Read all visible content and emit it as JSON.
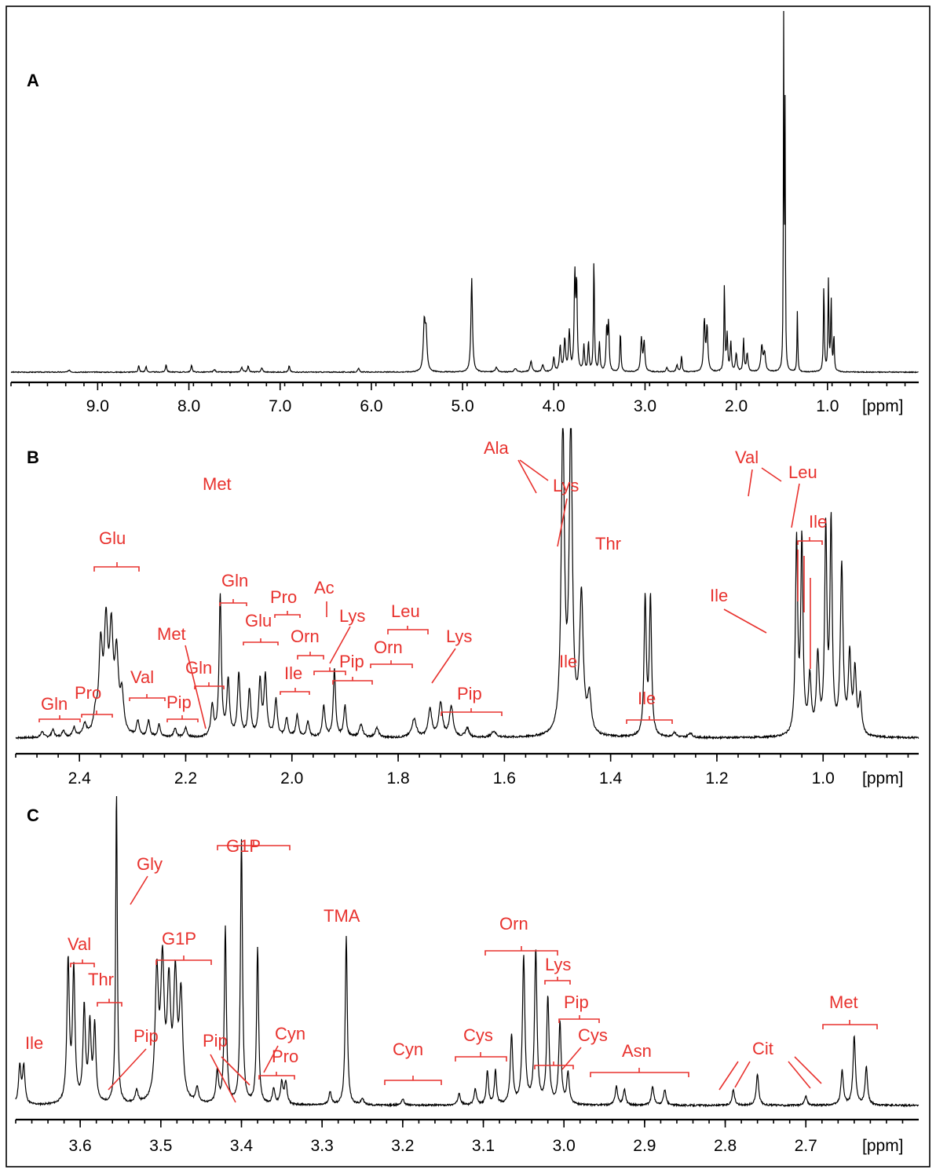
{
  "chart_data": [
    {
      "panel": "A",
      "type": "line",
      "title": "",
      "xlabel": "[ppm]",
      "ylabel": "",
      "xlim": [
        9.95,
        0.0
      ],
      "x_ticks": [
        "9.0",
        "8.0",
        "7.0",
        "6.0",
        "5.0",
        "4.0",
        "3.0",
        "2.0",
        "1.0"
      ],
      "x_tick_values": [
        9.0,
        8.0,
        7.0,
        6.0,
        5.0,
        4.0,
        3.0,
        2.0,
        1.0
      ],
      "peaks": [
        {
          "ppm": 9.31,
          "h": 0.006,
          "w": 0.012
        },
        {
          "ppm": 8.55,
          "h": 0.018,
          "w": 0.008
        },
        {
          "ppm": 8.47,
          "h": 0.016,
          "w": 0.008
        },
        {
          "ppm": 8.25,
          "h": 0.022,
          "w": 0.008
        },
        {
          "ppm": 7.97,
          "h": 0.02,
          "w": 0.008
        },
        {
          "ppm": 7.72,
          "h": 0.007,
          "w": 0.012
        },
        {
          "ppm": 7.42,
          "h": 0.014,
          "w": 0.01
        },
        {
          "ppm": 7.35,
          "h": 0.016,
          "w": 0.01
        },
        {
          "ppm": 7.2,
          "h": 0.012,
          "w": 0.01
        },
        {
          "ppm": 6.9,
          "h": 0.018,
          "w": 0.008
        },
        {
          "ppm": 6.14,
          "h": 0.01,
          "w": 0.01
        },
        {
          "ppm": 5.42,
          "h": 0.13,
          "w": 0.012
        },
        {
          "ppm": 5.4,
          "h": 0.1,
          "w": 0.012
        },
        {
          "ppm": 4.9,
          "h": 0.26,
          "w": 0.01
        },
        {
          "ppm": 4.63,
          "h": 0.012,
          "w": 0.015
        },
        {
          "ppm": 4.42,
          "h": 0.01,
          "w": 0.015
        },
        {
          "ppm": 4.25,
          "h": 0.03,
          "w": 0.012
        },
        {
          "ppm": 4.12,
          "h": 0.02,
          "w": 0.012
        },
        {
          "ppm": 4.0,
          "h": 0.04,
          "w": 0.01
        },
        {
          "ppm": 3.93,
          "h": 0.07,
          "w": 0.01
        },
        {
          "ppm": 3.88,
          "h": 0.09,
          "w": 0.01
        },
        {
          "ppm": 3.83,
          "h": 0.11,
          "w": 0.01
        },
        {
          "ppm": 3.77,
          "h": 0.26,
          "w": 0.008
        },
        {
          "ppm": 3.75,
          "h": 0.24,
          "w": 0.008
        },
        {
          "ppm": 3.67,
          "h": 0.07,
          "w": 0.008
        },
        {
          "ppm": 3.62,
          "h": 0.08,
          "w": 0.008
        },
        {
          "ppm": 3.56,
          "h": 0.32,
          "w": 0.006
        },
        {
          "ppm": 3.5,
          "h": 0.08,
          "w": 0.008
        },
        {
          "ppm": 3.42,
          "h": 0.12,
          "w": 0.008
        },
        {
          "ppm": 3.4,
          "h": 0.13,
          "w": 0.008
        },
        {
          "ppm": 3.27,
          "h": 0.11,
          "w": 0.007
        },
        {
          "ppm": 3.04,
          "h": 0.09,
          "w": 0.01
        },
        {
          "ppm": 3.01,
          "h": 0.08,
          "w": 0.01
        },
        {
          "ppm": 2.76,
          "h": 0.012,
          "w": 0.01
        },
        {
          "ppm": 2.65,
          "h": 0.02,
          "w": 0.01
        },
        {
          "ppm": 2.6,
          "h": 0.045,
          "w": 0.007
        },
        {
          "ppm": 2.35,
          "h": 0.14,
          "w": 0.01
        },
        {
          "ppm": 2.32,
          "h": 0.12,
          "w": 0.01
        },
        {
          "ppm": 2.13,
          "h": 0.24,
          "w": 0.006
        },
        {
          "ppm": 2.1,
          "h": 0.1,
          "w": 0.008
        },
        {
          "ppm": 2.06,
          "h": 0.08,
          "w": 0.008
        },
        {
          "ppm": 2.0,
          "h": 0.05,
          "w": 0.01
        },
        {
          "ppm": 1.92,
          "h": 0.09,
          "w": 0.007
        },
        {
          "ppm": 1.88,
          "h": 0.05,
          "w": 0.01
        },
        {
          "ppm": 1.72,
          "h": 0.07,
          "w": 0.012
        },
        {
          "ppm": 1.69,
          "h": 0.05,
          "w": 0.012
        },
        {
          "ppm": 1.48,
          "h": 1.0,
          "w": 0.004
        },
        {
          "ppm": 1.465,
          "h": 0.7,
          "w": 0.004
        },
        {
          "ppm": 1.33,
          "h": 0.17,
          "w": 0.005
        },
        {
          "ppm": 1.04,
          "h": 0.24,
          "w": 0.006
        },
        {
          "ppm": 0.99,
          "h": 0.25,
          "w": 0.006
        },
        {
          "ppm": 0.96,
          "h": 0.2,
          "w": 0.006
        },
        {
          "ppm": 0.93,
          "h": 0.1,
          "w": 0.006
        }
      ]
    },
    {
      "panel": "B",
      "type": "line",
      "title": "",
      "xlabel": "[ppm]",
      "ylabel": "",
      "xlim": [
        2.52,
        0.82
      ],
      "x_ticks": [
        "2.4",
        "2.2",
        "2.0",
        "1.8",
        "1.6",
        "1.4",
        "1.2",
        "1.0"
      ],
      "x_tick_values": [
        2.4,
        2.2,
        2.0,
        1.8,
        1.6,
        1.4,
        1.2,
        1.0
      ],
      "peaks": [
        {
          "ppm": 2.47,
          "h": 0.02,
          "w": 0.003
        },
        {
          "ppm": 2.45,
          "h": 0.025,
          "w": 0.003
        },
        {
          "ppm": 2.43,
          "h": 0.022,
          "w": 0.003
        },
        {
          "ppm": 2.41,
          "h": 0.03,
          "w": 0.003
        },
        {
          "ppm": 2.39,
          "h": 0.035,
          "w": 0.004
        },
        {
          "ppm": 2.37,
          "h": 0.06,
          "w": 0.004
        },
        {
          "ppm": 2.36,
          "h": 0.27,
          "w": 0.004
        },
        {
          "ppm": 2.35,
          "h": 0.33,
          "w": 0.004
        },
        {
          "ppm": 2.34,
          "h": 0.31,
          "w": 0.004
        },
        {
          "ppm": 2.33,
          "h": 0.24,
          "w": 0.004
        },
        {
          "ppm": 2.32,
          "h": 0.12,
          "w": 0.004
        },
        {
          "ppm": 2.29,
          "h": 0.05,
          "w": 0.003
        },
        {
          "ppm": 2.27,
          "h": 0.05,
          "w": 0.003
        },
        {
          "ppm": 2.25,
          "h": 0.04,
          "w": 0.003
        },
        {
          "ppm": 2.22,
          "h": 0.03,
          "w": 0.003
        },
        {
          "ppm": 2.2,
          "h": 0.03,
          "w": 0.003
        },
        {
          "ppm": 2.15,
          "h": 0.1,
          "w": 0.003
        },
        {
          "ppm": 2.135,
          "h": 0.45,
          "w": 0.0025
        },
        {
          "ppm": 2.12,
          "h": 0.18,
          "w": 0.003
        },
        {
          "ppm": 2.1,
          "h": 0.2,
          "w": 0.003
        },
        {
          "ppm": 2.08,
          "h": 0.15,
          "w": 0.003
        },
        {
          "ppm": 2.06,
          "h": 0.18,
          "w": 0.003
        },
        {
          "ppm": 2.05,
          "h": 0.19,
          "w": 0.003
        },
        {
          "ppm": 2.03,
          "h": 0.12,
          "w": 0.003
        },
        {
          "ppm": 2.01,
          "h": 0.06,
          "w": 0.003
        },
        {
          "ppm": 1.99,
          "h": 0.07,
          "w": 0.003
        },
        {
          "ppm": 1.97,
          "h": 0.05,
          "w": 0.003
        },
        {
          "ppm": 1.94,
          "h": 0.1,
          "w": 0.003
        },
        {
          "ppm": 1.92,
          "h": 0.22,
          "w": 0.0025
        },
        {
          "ppm": 1.9,
          "h": 0.1,
          "w": 0.003
        },
        {
          "ppm": 1.87,
          "h": 0.04,
          "w": 0.004
        },
        {
          "ppm": 1.84,
          "h": 0.03,
          "w": 0.004
        },
        {
          "ppm": 1.77,
          "h": 0.06,
          "w": 0.005
        },
        {
          "ppm": 1.74,
          "h": 0.09,
          "w": 0.004
        },
        {
          "ppm": 1.72,
          "h": 0.11,
          "w": 0.004
        },
        {
          "ppm": 1.7,
          "h": 0.1,
          "w": 0.004
        },
        {
          "ppm": 1.67,
          "h": 0.03,
          "w": 0.004
        },
        {
          "ppm": 1.62,
          "h": 0.02,
          "w": 0.005
        },
        {
          "ppm": 1.49,
          "h": 1.0,
          "w": 0.0035
        },
        {
          "ppm": 1.475,
          "h": 1.0,
          "w": 0.0035
        },
        {
          "ppm": 1.455,
          "h": 0.44,
          "w": 0.004
        },
        {
          "ppm": 1.44,
          "h": 0.12,
          "w": 0.004
        },
        {
          "ppm": 1.335,
          "h": 0.44,
          "w": 0.0025
        },
        {
          "ppm": 1.325,
          "h": 0.44,
          "w": 0.0025
        },
        {
          "ppm": 1.28,
          "h": 0.015,
          "w": 0.004
        },
        {
          "ppm": 1.25,
          "h": 0.015,
          "w": 0.004
        },
        {
          "ppm": 1.05,
          "h": 0.62,
          "w": 0.0025
        },
        {
          "ppm": 1.04,
          "h": 0.62,
          "w": 0.0025
        },
        {
          "ppm": 1.025,
          "h": 0.18,
          "w": 0.003
        },
        {
          "ppm": 1.01,
          "h": 0.25,
          "w": 0.003
        },
        {
          "ppm": 0.995,
          "h": 0.65,
          "w": 0.0025
        },
        {
          "ppm": 0.985,
          "h": 0.67,
          "w": 0.0025
        },
        {
          "ppm": 0.965,
          "h": 0.54,
          "w": 0.003
        },
        {
          "ppm": 0.95,
          "h": 0.25,
          "w": 0.003
        },
        {
          "ppm": 0.94,
          "h": 0.2,
          "w": 0.003
        },
        {
          "ppm": 0.93,
          "h": 0.12,
          "w": 0.003
        }
      ],
      "annotations": [
        "Gln",
        "Pro",
        "Glu",
        "Val",
        "Pip",
        "Met",
        "Gln",
        "Met",
        "Gln",
        "Glu",
        "Pro",
        "Orn",
        "Ile",
        "Ac",
        "Lys",
        "Pip",
        "Leu",
        "Orn",
        "Lys",
        "Pip",
        "Ala",
        "Lys",
        "Ile",
        "Thr",
        "Ile",
        "Val",
        "Leu",
        "Ile",
        "Ile"
      ]
    },
    {
      "panel": "C",
      "type": "line",
      "title": "",
      "xlabel": "[ppm]",
      "ylabel": "",
      "xlim": [
        3.68,
        2.56
      ],
      "x_ticks": [
        "3.6",
        "3.5",
        "3.4",
        "3.3",
        "3.2",
        "3.1",
        "3.0",
        "2.9",
        "2.8",
        "2.7"
      ],
      "x_tick_values": [
        3.6,
        3.5,
        3.4,
        3.3,
        3.2,
        3.1,
        3.0,
        2.9,
        2.8,
        2.7
      ],
      "peaks": [
        {
          "ppm": 3.675,
          "h": 0.12,
          "w": 0.0018
        },
        {
          "ppm": 3.67,
          "h": 0.12,
          "w": 0.0018
        },
        {
          "ppm": 3.615,
          "h": 0.45,
          "w": 0.0018
        },
        {
          "ppm": 3.608,
          "h": 0.42,
          "w": 0.0018
        },
        {
          "ppm": 3.595,
          "h": 0.3,
          "w": 0.0018
        },
        {
          "ppm": 3.588,
          "h": 0.24,
          "w": 0.0018
        },
        {
          "ppm": 3.582,
          "h": 0.24,
          "w": 0.0018
        },
        {
          "ppm": 3.555,
          "h": 1.0,
          "w": 0.0012
        },
        {
          "ppm": 3.53,
          "h": 0.04,
          "w": 0.002
        },
        {
          "ppm": 3.505,
          "h": 0.4,
          "w": 0.0025
        },
        {
          "ppm": 3.498,
          "h": 0.42,
          "w": 0.0025
        },
        {
          "ppm": 3.49,
          "h": 0.35,
          "w": 0.0025
        },
        {
          "ppm": 3.482,
          "h": 0.38,
          "w": 0.0025
        },
        {
          "ppm": 3.475,
          "h": 0.33,
          "w": 0.0025
        },
        {
          "ppm": 3.455,
          "h": 0.05,
          "w": 0.002
        },
        {
          "ppm": 3.43,
          "h": 0.1,
          "w": 0.0018
        },
        {
          "ppm": 3.42,
          "h": 0.56,
          "w": 0.0015
        },
        {
          "ppm": 3.4,
          "h": 0.84,
          "w": 0.0015
        },
        {
          "ppm": 3.38,
          "h": 0.5,
          "w": 0.0015
        },
        {
          "ppm": 3.36,
          "h": 0.05,
          "w": 0.0018
        },
        {
          "ppm": 3.35,
          "h": 0.07,
          "w": 0.0018
        },
        {
          "ppm": 3.345,
          "h": 0.07,
          "w": 0.0018
        },
        {
          "ppm": 3.29,
          "h": 0.04,
          "w": 0.002
        },
        {
          "ppm": 3.27,
          "h": 0.54,
          "w": 0.0015
        },
        {
          "ppm": 3.25,
          "h": 0.02,
          "w": 0.002
        },
        {
          "ppm": 3.2,
          "h": 0.02,
          "w": 0.002
        },
        {
          "ppm": 3.13,
          "h": 0.04,
          "w": 0.0018
        },
        {
          "ppm": 3.11,
          "h": 0.05,
          "w": 0.0018
        },
        {
          "ppm": 3.095,
          "h": 0.11,
          "w": 0.0015
        },
        {
          "ppm": 3.085,
          "h": 0.11,
          "w": 0.0015
        },
        {
          "ppm": 3.065,
          "h": 0.22,
          "w": 0.0018
        },
        {
          "ppm": 3.05,
          "h": 0.47,
          "w": 0.0018
        },
        {
          "ppm": 3.035,
          "h": 0.49,
          "w": 0.0018
        },
        {
          "ppm": 3.02,
          "h": 0.34,
          "w": 0.0018
        },
        {
          "ppm": 3.005,
          "h": 0.26,
          "w": 0.0018
        },
        {
          "ppm": 2.995,
          "h": 0.1,
          "w": 0.0018
        },
        {
          "ppm": 2.935,
          "h": 0.06,
          "w": 0.0018
        },
        {
          "ppm": 2.925,
          "h": 0.05,
          "w": 0.0018
        },
        {
          "ppm": 2.89,
          "h": 0.06,
          "w": 0.0018
        },
        {
          "ppm": 2.875,
          "h": 0.05,
          "w": 0.0018
        },
        {
          "ppm": 2.79,
          "h": 0.05,
          "w": 0.0018
        },
        {
          "ppm": 2.76,
          "h": 0.1,
          "w": 0.0018
        },
        {
          "ppm": 2.7,
          "h": 0.03,
          "w": 0.0018
        },
        {
          "ppm": 2.655,
          "h": 0.11,
          "w": 0.0018
        },
        {
          "ppm": 2.64,
          "h": 0.22,
          "w": 0.0018
        },
        {
          "ppm": 2.625,
          "h": 0.12,
          "w": 0.0018
        }
      ],
      "annotations": [
        "Ile",
        "Val",
        "Thr",
        "Gly",
        "Pip",
        "G1P",
        "Pip",
        "G1P",
        "Cyn",
        "Pro",
        "TMA",
        "Cyn",
        "Cys",
        "Orn",
        "Lys",
        "Pip",
        "Cys",
        "Asn",
        "Cit",
        "Met"
      ]
    }
  ],
  "panel_labels": [
    "A",
    "B",
    "C"
  ],
  "unit_label": "[ppm]",
  "colors": {
    "annotation": "#e8322e",
    "spectrum": "#000000",
    "background": "#ffffff"
  }
}
